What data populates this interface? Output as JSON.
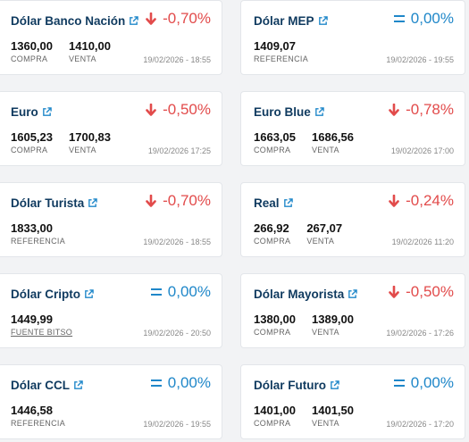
{
  "colors": {
    "down": "#e24b4b",
    "flat": "#1f87c9",
    "title": "#0f3a5f"
  },
  "cards": [
    {
      "title": "Dólar Banco Nación",
      "direction": "down",
      "change": "-0,70%",
      "v1": "1360,00",
      "l1": "COMPRA",
      "v2": "1410,00",
      "l2": "VENTA",
      "date": "19/02/2026 - 18:55"
    },
    {
      "title": "Dólar MEP",
      "direction": "flat",
      "change": "0,00%",
      "v1": "1409,07",
      "l1": "REFERENCIA",
      "date": "19/02/2026 - 19:55"
    },
    {
      "title": "Euro",
      "direction": "down",
      "change": "-0,50%",
      "v1": "1605,23",
      "l1": "COMPRA",
      "v2": "1700,83",
      "l2": "VENTA",
      "date": "19/02/2026 17:25"
    },
    {
      "title": "Euro Blue",
      "direction": "down",
      "change": "-0,78%",
      "v1": "1663,05",
      "l1": "COMPRA",
      "v2": "1686,56",
      "l2": "VENTA",
      "date": "19/02/2026 17:00"
    },
    {
      "title": "Dólar Turista",
      "direction": "down",
      "change": "-0,70%",
      "v1": "1833,00",
      "l1": "REFERENCIA",
      "date": "19/02/2026 - 18:55"
    },
    {
      "title": "Real",
      "direction": "down",
      "change": "-0,24%",
      "v1": "266,92",
      "l1": "COMPRA",
      "v2": "267,07",
      "l2": "VENTA",
      "date": "19/02/2026 11:20"
    },
    {
      "title": "Dólar Cripto",
      "direction": "flat",
      "change": "0,00%",
      "v1": "1449,99",
      "l1": "FUENTE BITSO",
      "date": "19/02/2026 - 20:50"
    },
    {
      "title": "Dólar Mayorista",
      "direction": "down",
      "change": "-0,50%",
      "v1": "1380,00",
      "l1": "COMPRA",
      "v2": "1389,00",
      "l2": "VENTA",
      "date": "19/02/2026 - 17:26"
    },
    {
      "title": "Dólar CCL",
      "direction": "flat",
      "change": "0,00%",
      "v1": "1446,58",
      "l1": "REFERENCIA",
      "date": "19/02/2026 - 19:55"
    },
    {
      "title": "Dólar Futuro",
      "direction": "flat",
      "change": "0,00%",
      "v1": "1401,00",
      "l1": "COMPRA",
      "v2": "1401,50",
      "l2": "VENTA",
      "date": "19/02/2026 - 17:20"
    }
  ]
}
